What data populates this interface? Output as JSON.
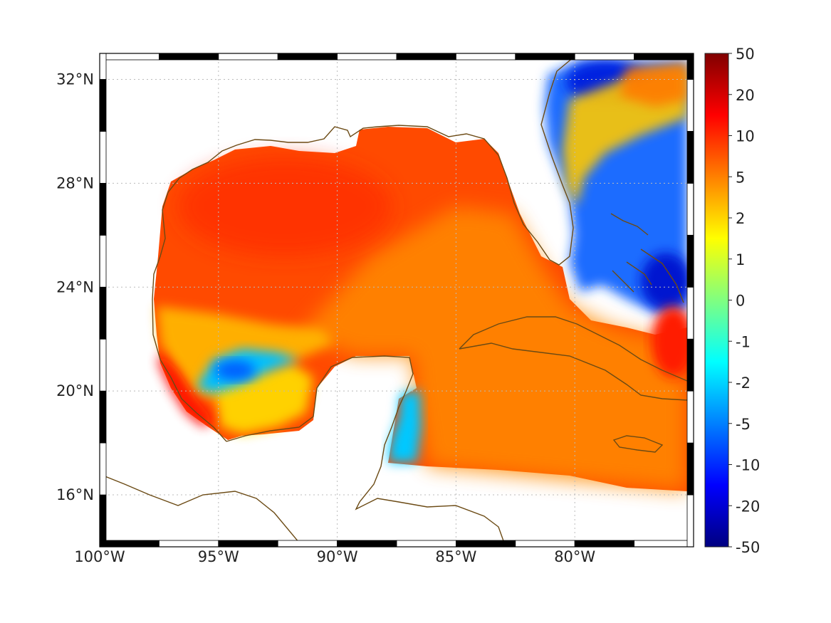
{
  "map": {
    "type": "heatmap",
    "region": "Gulf of Mexico and Caribbean",
    "lon_range": [
      -100,
      -75
    ],
    "lat_range": [
      14,
      33
    ],
    "lon_ticks": [
      {
        "value": -100,
        "label": "100°W"
      },
      {
        "value": -95,
        "label": "95°W"
      },
      {
        "value": -90,
        "label": "90°W"
      },
      {
        "value": -85,
        "label": "85°W"
      },
      {
        "value": -80,
        "label": "80°W"
      }
    ],
    "lat_ticks": [
      {
        "value": 32,
        "label": "32°N"
      },
      {
        "value": 28,
        "label": "28°N"
      },
      {
        "value": 24,
        "label": "24°N"
      },
      {
        "value": 20,
        "label": "20°N"
      },
      {
        "value": 16,
        "label": "16°N"
      }
    ],
    "grid": true,
    "colors": {
      "coastline": "#6b4a14",
      "grid": "#bbbbbb",
      "frame": "#000000"
    }
  },
  "colorbar": {
    "position": "right",
    "colormap": "jet",
    "ticks": [
      "50",
      "20",
      "10",
      "5",
      "2",
      "1",
      "0",
      "-1",
      "-2",
      "-5",
      "-10",
      "-20",
      "-50"
    ],
    "stops": [
      "#800000",
      "#ff0000",
      "#ff8000",
      "#ffff00",
      "#80ff80",
      "#00ffff",
      "#0080ff",
      "#0000ff",
      "#000080"
    ]
  }
}
